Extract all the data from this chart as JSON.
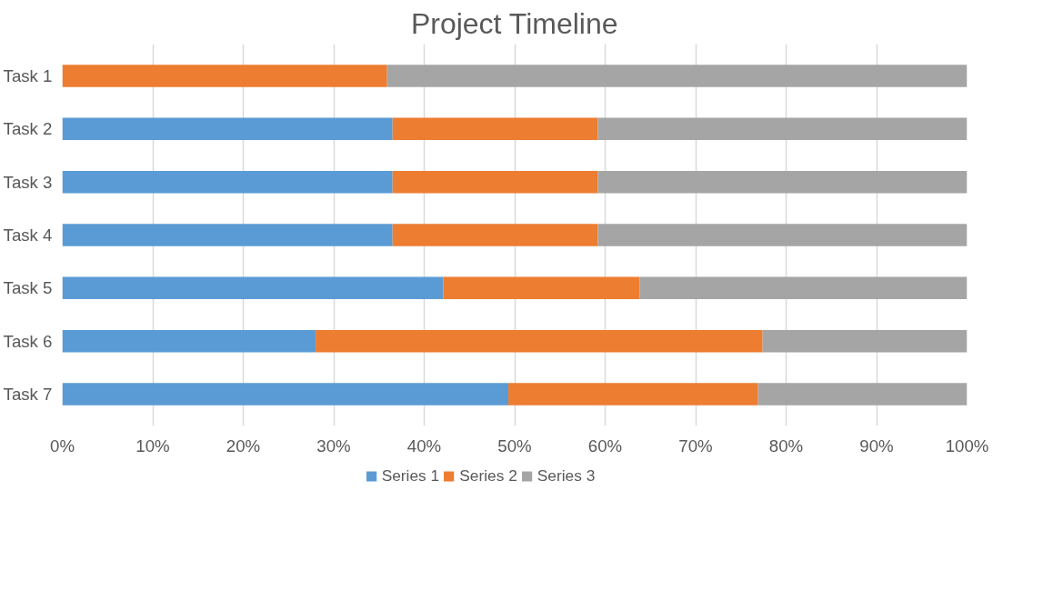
{
  "chart_data": {
    "type": "bar",
    "title": "Project Timeline",
    "orientation": "horizontal",
    "stacked": true,
    "categories": [
      "Task 1",
      "Task 2",
      "Task 3",
      "Task 4",
      "Task 5",
      "Task 6",
      "Task 7"
    ],
    "series": [
      {
        "name": "Series 1",
        "color": "#5b9bd5",
        "values": [
          0,
          36.5,
          36.5,
          36.5,
          42.1,
          28.0,
          49.3
        ]
      },
      {
        "name": "Series 2",
        "color": "#ed7d31",
        "values": [
          35.9,
          22.7,
          22.7,
          22.7,
          21.7,
          49.4,
          27.6
        ]
      },
      {
        "name": "Series 3",
        "color": "#a5a5a5",
        "values": [
          64.1,
          40.8,
          40.8,
          40.8,
          36.2,
          22.6,
          23.1
        ]
      }
    ],
    "xlim": [
      0,
      100
    ],
    "xticks": [
      {
        "value": 0,
        "label": "0%"
      },
      {
        "value": 10,
        "label": "10%"
      },
      {
        "value": 20,
        "label": "20%"
      },
      {
        "value": 30,
        "label": "30%"
      },
      {
        "value": 40,
        "label": "40%"
      },
      {
        "value": 50,
        "label": "50%"
      },
      {
        "value": 60,
        "label": "60%"
      },
      {
        "value": 70,
        "label": "70%"
      },
      {
        "value": 80,
        "label": "80%"
      },
      {
        "value": 90,
        "label": "90%"
      },
      {
        "value": 100,
        "label": "100%"
      }
    ],
    "grid": "x",
    "legend": "bottom"
  }
}
